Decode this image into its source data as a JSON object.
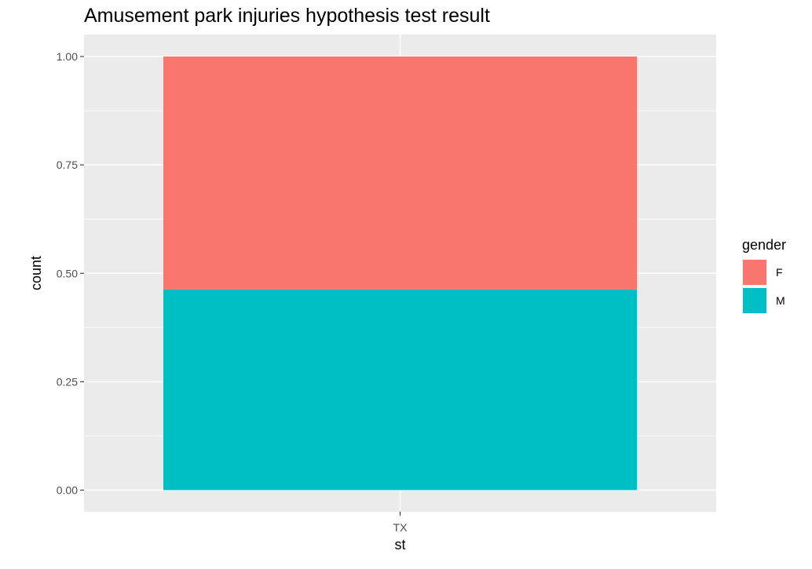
{
  "chart_data": {
    "type": "bar",
    "stacked": true,
    "title": "Amusement park injuries hypothesis test result",
    "xlabel": "st",
    "ylabel": "count",
    "categories": [
      "TX"
    ],
    "series": [
      {
        "name": "F",
        "values": [
          0.537
        ],
        "color": "#F8766D"
      },
      {
        "name": "M",
        "values": [
          0.463
        ],
        "color": "#00BFC4"
      }
    ],
    "stack_order_bottom_to_top": [
      "M",
      "F"
    ],
    "ylim": [
      0,
      1
    ],
    "y_ticks": [
      0.0,
      0.25,
      0.5,
      0.75,
      1.0
    ],
    "y_tick_labels": [
      "0.00",
      "0.25",
      "0.50",
      "0.75",
      "1.00"
    ],
    "x_tick_labels": [
      "TX"
    ],
    "grid": true,
    "panel_background": "#EBEBEB",
    "grid_color": "#FFFFFF",
    "legend": {
      "title": "gender",
      "position": "right",
      "entries": [
        {
          "label": "F",
          "color": "#F8766D"
        },
        {
          "label": "M",
          "color": "#00BFC4"
        }
      ]
    }
  }
}
